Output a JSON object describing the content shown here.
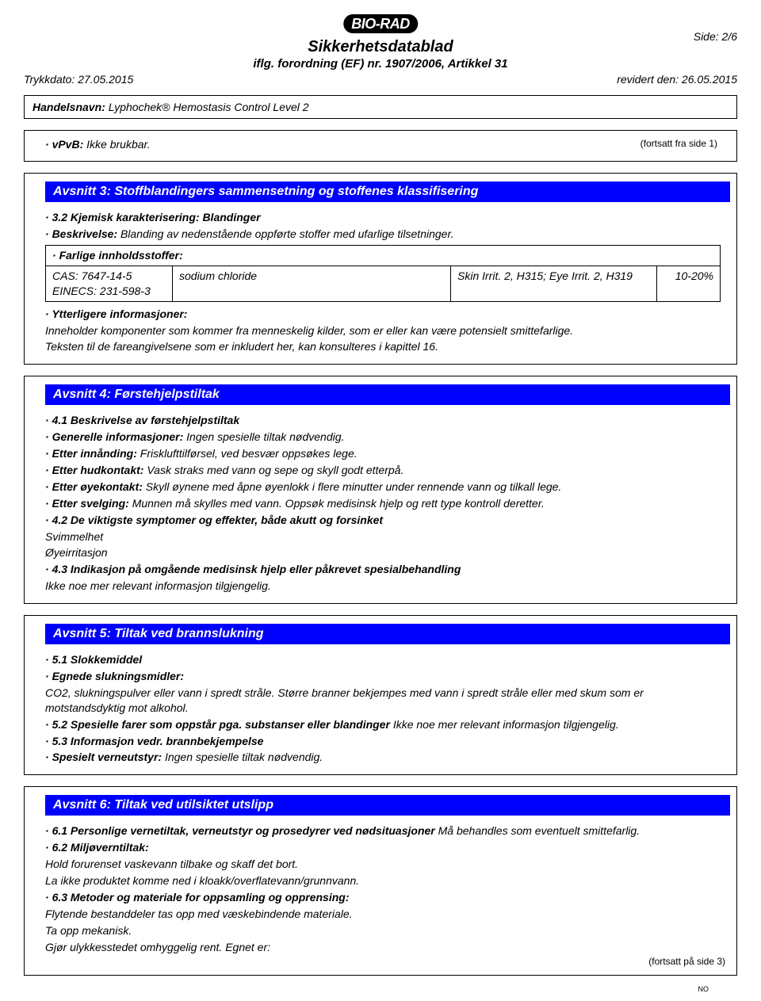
{
  "header": {
    "logo_text": "BIO-RAD",
    "title": "Sikkerhetsdatablad",
    "subtitle": "iflg. forordning (EF) nr. 1907/2006, Artikkel 31",
    "side": "Side: 2/6",
    "print_date_label": "Trykkdato: ",
    "print_date": "27.05.2015",
    "revised_label": "revidert den: ",
    "revised_date": "26.05.2015",
    "product_label": "Handelsnavn: ",
    "product_name": "Lyphochek® Hemostasis Control Level 2"
  },
  "vpvb": {
    "label": "vPvB:",
    "text": " Ikke brukbar.",
    "cont_from": "(fortsatt fra side 1)"
  },
  "section3": {
    "title": "Avsnitt 3: Stoffblandingers sammensetning og stoffenes klassifisering",
    "sub1": "3.2 Kjemisk karakterisering: Blandinger",
    "desc_label": "Beskrivelse:",
    "desc_text": " Blanding av nedenstående oppførte stoffer med ufarlige tilsetninger.",
    "table_header": "Farlige innholdsstoffer:",
    "cas_line1": "CAS: 7647-14-5",
    "cas_line2": "EINECS: 231-598-3",
    "substance": "sodium chloride",
    "hazard": "Skin Irrit. 2, H315; Eye Irrit. 2, H319",
    "percent": "10-20%",
    "further_label": "Ytterligere informasjoner:",
    "further_line1": "Inneholder komponenter som kommer fra menneskelig kilder, som er eller kan være potensielt smittefarlige.",
    "further_line2": "Teksten til de fareangivelsene som er inkludert her, kan konsulteres i kapittel 16."
  },
  "section4": {
    "title": "Avsnitt 4: Førstehjelpstiltak",
    "s41": "4.1 Beskrivelse av førstehjelpstiltak",
    "gen_label": "Generelle informasjoner:",
    "gen_text": " Ingen spesielle tiltak nødvendig.",
    "inhale_label": "Etter innånding:",
    "inhale_text": " Frisklufttilførsel, ved besvær oppsøkes lege.",
    "skin_label": "Etter hudkontakt:",
    "skin_text": " Vask straks med vann og sepe og skyll godt etterpå.",
    "eye_label": "Etter øyekontakt:",
    "eye_text": " Skyll øynene med åpne øyenlokk i flere minutter under rennende vann og tilkall lege.",
    "swallow_label": "Etter svelging:",
    "swallow_text": " Munnen må skylles med vann.  Oppsøk medisinsk hjelp og rett type kontroll deretter.",
    "s42": "4.2 De viktigste symptomer og effekter, både akutt og forsinket",
    "s42_line1": "Svimmelhet",
    "s42_line2": "Øyeirritasjon",
    "s43": "4.3 Indikasjon på omgående medisinsk hjelp eller påkrevet spesialbehandling",
    "s43_text": "Ikke noe mer relevant informasjon tilgjengelig."
  },
  "section5": {
    "title": "Avsnitt 5: Tiltak ved brannslukning",
    "s51": "5.1 Slokkemiddel",
    "ext_label": "Egnede slukningsmidler:",
    "ext_text": "CO2, slukningspulver eller vann i spredt stråle. Større branner bekjempes med vann i spredt stråle eller med skum som er motstandsdyktig mot alkohol.",
    "s52_label": "5.2 Spesielle farer som oppstår pga. substanser eller blandinger",
    "s52_text": " Ikke noe mer relevant informasjon tilgjengelig.",
    "s53": "5.3 Informasjon vedr. brannbekjempelse",
    "equip_label": "Spesielt verneutstyr:",
    "equip_text": " Ingen spesielle tiltak nødvendig."
  },
  "section6": {
    "title": "Avsnitt 6: Tiltak ved utilsiktet utslipp",
    "s61_label": "6.1 Personlige vernetiltak, verneutstyr og prosedyrer ved nødsituasjoner",
    "s61_text": " Må behandles som eventuelt smittefarlig.",
    "s62": "6.2 Miljøverntiltak:",
    "s62_line1": "Hold forurenset vaskevann tilbake og skaff det bort.",
    "s62_line2": "La ikke produktet komme ned i kloakk/overflatevann/grunnvann.",
    "s63": "6.3 Metoder og materiale for oppsamling og opprensing:",
    "s63_line1": "Flytende bestanddeler tas opp med væskebindende materiale.",
    "s63_line2": "Ta opp mekanisk.",
    "s63_line3": "Gjør ulykkesstedet omhyggelig rent. Egnet er:",
    "cont_to": "(fortsatt på side 3)",
    "lang": "NO"
  }
}
